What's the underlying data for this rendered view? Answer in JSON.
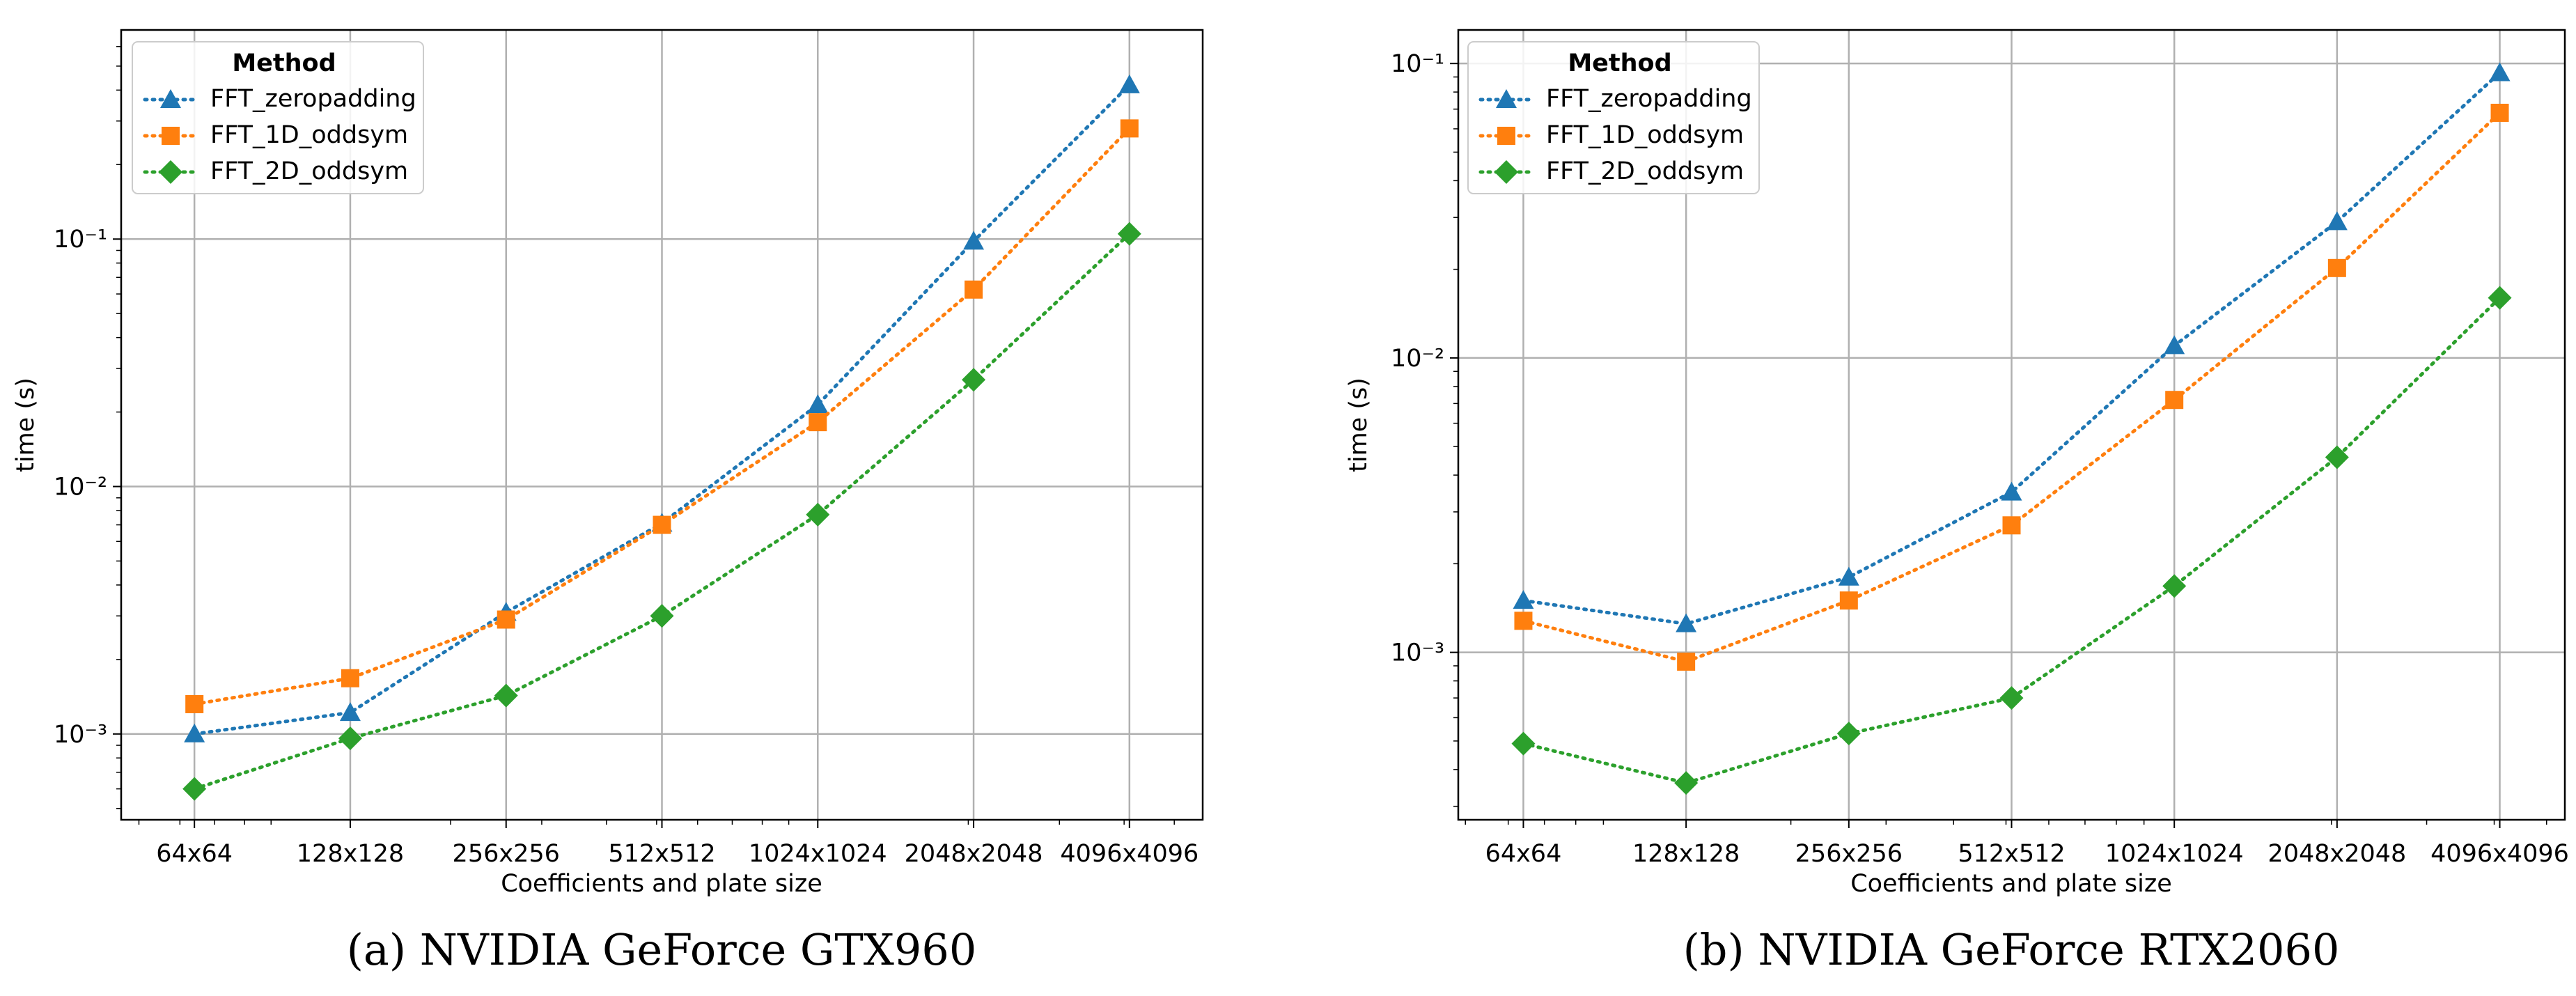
{
  "chart_data": [
    {
      "type": "line",
      "caption": "(a)  NVIDIA GeForce GTX960",
      "xlabel": "Coefficients and plate size",
      "ylabel": "time (s)",
      "yscale": "log",
      "ylim": [
        0.00045,
        0.7
      ],
      "grid": true,
      "legend": {
        "title": "Method",
        "position": "upper-left"
      },
      "categories": [
        "64x64",
        "128x128",
        "256x256",
        "512x512",
        "1024x1024",
        "2048x2048",
        "4096x4096"
      ],
      "x_positions": [
        64,
        128,
        256,
        512,
        1024,
        2048,
        4096
      ],
      "ytick_labels": [
        "10⁻³",
        "10⁻²",
        "10⁻¹"
      ],
      "ytick_values": [
        0.001,
        0.01,
        0.1
      ],
      "series": [
        {
          "name": "FFT_zeropadding",
          "color": "#1f77b4",
          "marker": "triangle",
          "values": [
            0.001,
            0.00122,
            0.0031,
            0.0071,
            0.0214,
            0.098,
            0.42
          ]
        },
        {
          "name": "FFT_1D_oddsym",
          "color": "#ff7f0e",
          "marker": "square",
          "values": [
            0.00132,
            0.00168,
            0.0029,
            0.007,
            0.0182,
            0.0625,
            0.28
          ]
        },
        {
          "name": "FFT_2D_oddsym",
          "color": "#2ca02c",
          "marker": "diamond",
          "values": [
            0.0006,
            0.00096,
            0.00143,
            0.003,
            0.0077,
            0.027,
            0.105
          ]
        }
      ]
    },
    {
      "type": "line",
      "caption": "(b)  NVIDIA GeForce RTX2060",
      "xlabel": "Coefficients and plate size",
      "ylabel": "time (s)",
      "yscale": "log",
      "ylim": [
        0.00027,
        0.13
      ],
      "grid": true,
      "legend": {
        "title": "Method",
        "position": "upper-left"
      },
      "categories": [
        "64x64",
        "128x128",
        "256x256",
        "512x512",
        "1024x1024",
        "2048x2048",
        "4096x4096"
      ],
      "x_positions": [
        64,
        128,
        256,
        512,
        1024,
        2048,
        4096
      ],
      "ytick_labels": [
        "10⁻³",
        "10⁻²",
        "10⁻¹"
      ],
      "ytick_values": [
        0.001,
        0.01,
        0.1
      ],
      "series": [
        {
          "name": "FFT_zeropadding",
          "color": "#1f77b4",
          "marker": "triangle",
          "values": [
            0.0015,
            0.00125,
            0.0018,
            0.0035,
            0.011,
            0.029,
            0.093
          ]
        },
        {
          "name": "FFT_1D_oddsym",
          "color": "#ff7f0e",
          "marker": "square",
          "values": [
            0.00128,
            0.00093,
            0.0015,
            0.0027,
            0.0072,
            0.0202,
            0.068
          ]
        },
        {
          "name": "FFT_2D_oddsym",
          "color": "#2ca02c",
          "marker": "diamond",
          "values": [
            0.00049,
            0.00036,
            0.00053,
            0.0007,
            0.00168,
            0.0046,
            0.016
          ]
        }
      ]
    }
  ]
}
